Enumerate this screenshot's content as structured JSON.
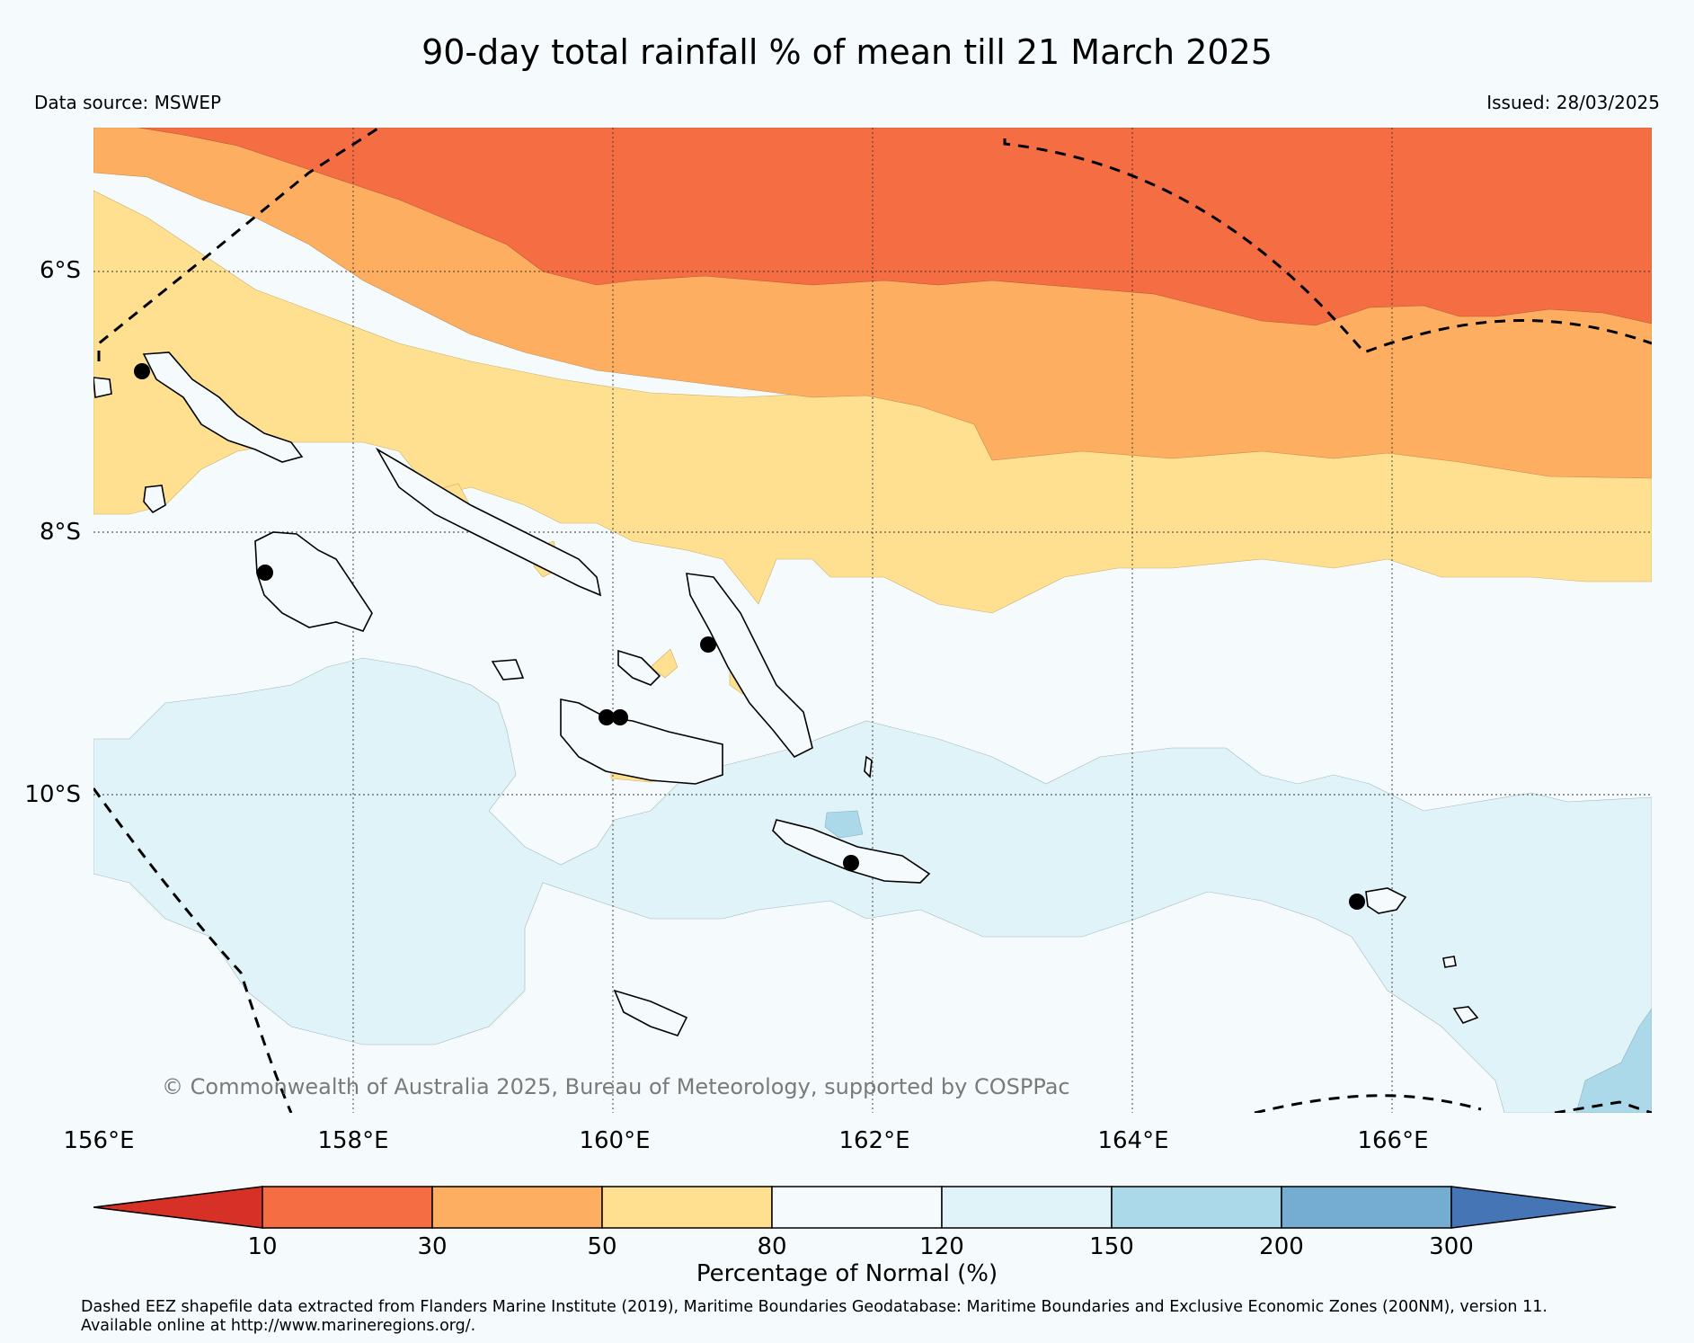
{
  "title": "90-day total rainfall % of mean till 21 March 2025",
  "data_source": "Data source: MSWEP",
  "issued": "Issued: 28/03/2025",
  "map": {
    "lat_labels": [
      "6°S",
      "8°S",
      "10°S"
    ],
    "lon_labels": [
      "156°E",
      "158°E",
      "160°E",
      "162°E",
      "164°E",
      "166°E"
    ],
    "copyright": "© Commonwealth of Australia 2025, Bureau of Meteorology, supported by COSPPac",
    "colors": {
      "ocean_base": "#f5fbfd",
      "band_10_30": "#f46d43",
      "band_30_50": "#fdae61",
      "band_50_80": "#fee090",
      "band_80_120": "#f5fbfd",
      "band_120_150": "#e0f3f8",
      "band_150_200": "#abd9e9",
      "band_200_300": "#74add1",
      "land_outline": "#000000",
      "eez_line": "#000000"
    }
  },
  "colorbar": {
    "ticks": [
      "10",
      "30",
      "50",
      "80",
      "120",
      "150",
      "200",
      "300"
    ],
    "label": "Percentage of Normal (%)",
    "colors": [
      "#d73027",
      "#f46d43",
      "#fdae61",
      "#fee090",
      "#f5fbfd",
      "#e0f3f8",
      "#abd9e9",
      "#74add1",
      "#4575b4"
    ]
  },
  "footnote": [
    "Dashed EEZ shapefile data extracted from Flanders Marine Institute (2019), Maritime Boundaries Geodatabase: Maritime Boundaries and Exclusive Economic Zones (200NM), version 11.",
    "Available online at http://www.marineregions.org/."
  ]
}
